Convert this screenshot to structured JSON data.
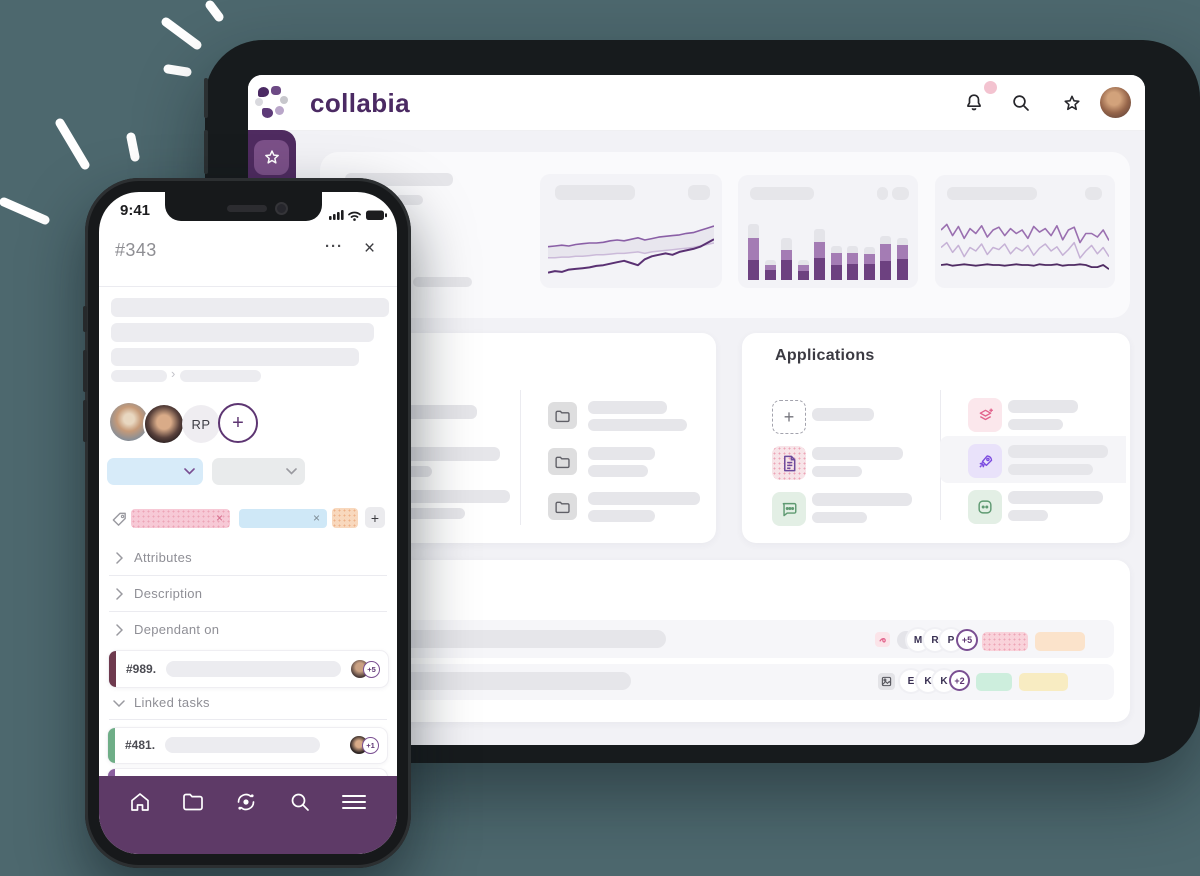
{
  "page_bg": "#4d686e",
  "colors": {
    "brand_purple": "#4b2a63",
    "sidebar_purple": "#4f2b60",
    "sidebar_button_purple": "#7b5088",
    "nav_purple": "#5e3a67",
    "notification_dot": "#f3c3d0",
    "accent_maroon": "#6e3a4e",
    "accent_green": "#6fae87"
  },
  "tablet": {
    "brand": "collabia",
    "applications_title": "Applications",
    "team_rows": [
      {
        "members": [
          "M",
          "R",
          "P"
        ],
        "overflow": "+5"
      },
      {
        "members": [
          "E",
          "K",
          "K"
        ],
        "overflow": "+2"
      }
    ]
  },
  "phone": {
    "time": "9:41",
    "task_id": "#343",
    "more": "···",
    "close": "×",
    "breadcrumb_sep": "›",
    "assignees": {
      "initials": "RP",
      "add": "+"
    },
    "tag_close": "×",
    "add_tag": "+",
    "sections": [
      {
        "label": "Attributes"
      },
      {
        "label": "Description"
      },
      {
        "label": "Dependant on"
      }
    ],
    "linked_tasks": "Linked tasks",
    "tasks": [
      {
        "id": "#989.",
        "overflow": "+5"
      },
      {
        "id": "#481.",
        "overflow": "+1"
      }
    ]
  },
  "chart_data": [
    {
      "type": "line",
      "element": "chart-trend",
      "title": "rising trend sparkline (skeleton card)",
      "fill_between": [
        0,
        1
      ],
      "fill_color": "rgba(106,70,134,0.07)",
      "series": [
        {
          "name": "upper",
          "color": "#8a5fa6",
          "width": 1.6,
          "values": [
            55,
            54,
            53,
            54,
            52,
            51,
            50,
            50,
            49,
            47,
            46,
            47,
            45,
            43,
            46,
            44,
            42,
            41,
            40,
            39,
            37,
            36,
            33,
            30,
            27
          ]
        },
        {
          "name": "middle",
          "color": "#cbbad9",
          "width": 1.5,
          "values": [
            70,
            70,
            69,
            69,
            68,
            68,
            67,
            66,
            66,
            65,
            64,
            64,
            63,
            62,
            64,
            62,
            61,
            60,
            59,
            58,
            57,
            56,
            54,
            52,
            50
          ]
        },
        {
          "name": "lower",
          "color": "#5a3173",
          "width": 2,
          "values": [
            90,
            88,
            89,
            86,
            85,
            84,
            83,
            81,
            80,
            78,
            76,
            74,
            77,
            80,
            72,
            68,
            66,
            64,
            66,
            62,
            60,
            58,
            55,
            50,
            45
          ]
        }
      ]
    },
    {
      "type": "bar",
      "element": "chart-bars",
      "title": "stacked bars (skeleton card)",
      "stack_order": [
        "light",
        "mid",
        "dark"
      ],
      "colors": {
        "light": "#e4e4e9",
        "mid": "#a47cb4",
        "dark": "#6d4180"
      },
      "stacks": [
        [
          14,
          22,
          20
        ],
        [
          5,
          5,
          10
        ],
        [
          12,
          10,
          20
        ],
        [
          5,
          6,
          9
        ],
        [
          13,
          16,
          22
        ],
        [
          7,
          12,
          15
        ],
        [
          7,
          11,
          16
        ],
        [
          7,
          10,
          16
        ],
        [
          8,
          17,
          19
        ],
        [
          7,
          14,
          21
        ]
      ]
    },
    {
      "type": "line",
      "element": "chart-volatility",
      "title": "volatile lines (skeleton card)",
      "series": [
        {
          "name": "upper",
          "color": "#9a6fb0",
          "width": 1.6,
          "values": [
            30,
            22,
            38,
            25,
            42,
            28,
            35,
            24,
            40,
            30,
            26,
            38,
            28,
            35,
            30,
            42,
            25,
            33,
            28,
            38,
            24,
            44,
            30,
            26,
            48,
            35,
            35,
            40,
            30,
            45
          ]
        },
        {
          "name": "middle",
          "color": "#c6b2d6",
          "width": 1.5,
          "values": [
            55,
            48,
            62,
            52,
            68,
            55,
            60,
            50,
            65,
            55,
            58,
            50,
            64,
            55,
            60,
            52,
            66,
            56,
            50,
            60,
            54,
            66,
            58,
            48,
            70,
            60,
            52,
            64,
            55,
            68
          ]
        },
        {
          "name": "lower",
          "color": "#4f2b63",
          "width": 1.8,
          "values": [
            80,
            79,
            81,
            80,
            79,
            80,
            81,
            80,
            79,
            80,
            80,
            81,
            80,
            79,
            80,
            80,
            81,
            79,
            80,
            80,
            79,
            81,
            80,
            80,
            79,
            80,
            83,
            83,
            80,
            86
          ]
        }
      ]
    }
  ]
}
